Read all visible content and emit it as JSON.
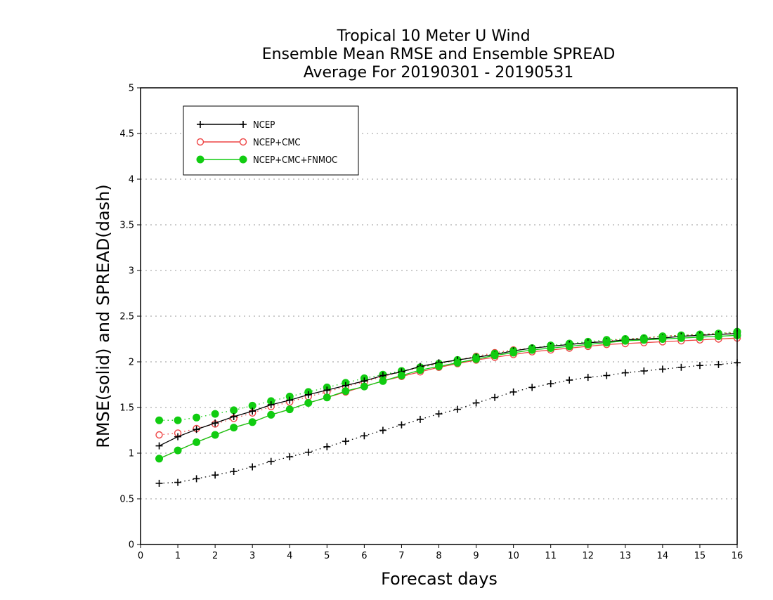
{
  "chart_data": {
    "type": "line",
    "title": [
      "Tropical 10 Meter U Wind",
      "Ensemble Mean RMSE and Ensemble SPREAD",
      "Average For 20190301 - 20190531"
    ],
    "xlabel": "Forecast days",
    "ylabel": "RMSE(solid) and SPREAD(dash)",
    "xlim": [
      0,
      16
    ],
    "ylim": [
      0,
      5
    ],
    "x_ticks": [
      "0",
      "1",
      "2",
      "3",
      "4",
      "5",
      "6",
      "7",
      "8",
      "9",
      "10",
      "11",
      "12",
      "13",
      "14",
      "15",
      "16"
    ],
    "y_ticks": [
      "0",
      "0.5",
      "1",
      "1.5",
      "2",
      "2.5",
      "3",
      "3.5",
      "4",
      "4.5",
      "5"
    ],
    "grid": "horizontal dotted",
    "legend_position": "top-left",
    "x": [
      0.5,
      1,
      1.5,
      2,
      2.5,
      3,
      3.5,
      4,
      4.5,
      5,
      5.5,
      6,
      6.5,
      7,
      7.5,
      8,
      8.5,
      9,
      9.5,
      10,
      10.5,
      11,
      11.5,
      12,
      12.5,
      13,
      13.5,
      14,
      14.5,
      15,
      15.5,
      16
    ],
    "series": [
      {
        "name": "NCEP",
        "color": "#000000",
        "marker": "plus",
        "rmse": [
          1.08,
          1.18,
          1.26,
          1.33,
          1.4,
          1.46,
          1.53,
          1.58,
          1.64,
          1.69,
          1.74,
          1.79,
          1.85,
          1.89,
          1.95,
          1.99,
          2.02,
          2.05,
          2.08,
          2.12,
          2.15,
          2.17,
          2.19,
          2.21,
          2.22,
          2.24,
          2.25,
          2.26,
          2.28,
          2.29,
          2.3,
          2.31
        ],
        "spread": [
          0.67,
          0.68,
          0.72,
          0.76,
          0.8,
          0.85,
          0.91,
          0.96,
          1.01,
          1.07,
          1.13,
          1.19,
          1.25,
          1.31,
          1.37,
          1.43,
          1.48,
          1.55,
          1.61,
          1.67,
          1.72,
          1.76,
          1.8,
          1.83,
          1.85,
          1.88,
          1.9,
          1.92,
          1.94,
          1.96,
          1.97,
          1.99
        ]
      },
      {
        "name": "NCEP+CMC",
        "color": "#ee4444",
        "marker": "open-circle",
        "rmse": [
          0.94,
          1.03,
          1.12,
          1.2,
          1.28,
          1.34,
          1.42,
          1.48,
          1.55,
          1.61,
          1.67,
          1.73,
          1.79,
          1.84,
          1.89,
          1.94,
          1.98,
          2.02,
          2.05,
          2.08,
          2.11,
          2.13,
          2.15,
          2.17,
          2.19,
          2.2,
          2.21,
          2.22,
          2.23,
          2.24,
          2.25,
          2.26
        ],
        "spread": [
          1.2,
          1.22,
          1.27,
          1.32,
          1.38,
          1.44,
          1.51,
          1.56,
          1.62,
          1.67,
          1.73,
          1.78,
          1.84,
          1.89,
          1.94,
          1.98,
          2.02,
          2.06,
          2.1,
          2.13,
          2.15,
          2.17,
          2.19,
          2.21,
          2.23,
          2.25,
          2.26,
          2.28,
          2.29,
          2.3,
          2.31,
          2.32
        ]
      },
      {
        "name": "NCEP+CMC+FNMOC",
        "color": "#11cc11",
        "marker": "filled-circle",
        "rmse": [
          0.94,
          1.03,
          1.12,
          1.2,
          1.28,
          1.34,
          1.42,
          1.48,
          1.55,
          1.61,
          1.68,
          1.73,
          1.79,
          1.85,
          1.91,
          1.95,
          1.99,
          2.03,
          2.07,
          2.1,
          2.13,
          2.15,
          2.17,
          2.19,
          2.21,
          2.23,
          2.24,
          2.25,
          2.26,
          2.27,
          2.28,
          2.29
        ],
        "spread": [
          1.36,
          1.36,
          1.39,
          1.43,
          1.47,
          1.52,
          1.57,
          1.62,
          1.67,
          1.72,
          1.77,
          1.82,
          1.86,
          1.9,
          1.94,
          1.98,
          2.02,
          2.05,
          2.09,
          2.12,
          2.15,
          2.18,
          2.2,
          2.22,
          2.24,
          2.25,
          2.26,
          2.28,
          2.29,
          2.3,
          2.31,
          2.33
        ]
      }
    ]
  }
}
